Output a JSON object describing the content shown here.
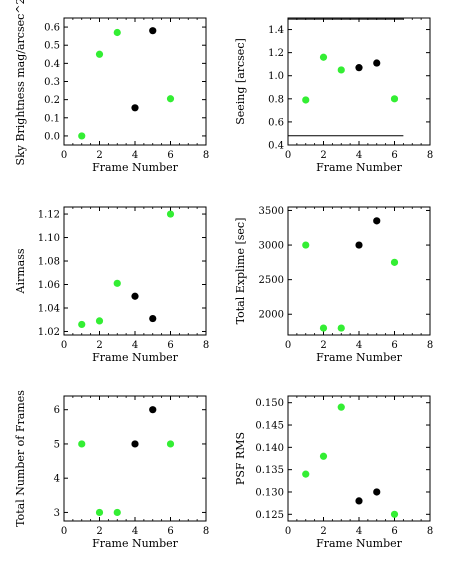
{
  "figure": {
    "background": "#ffffff",
    "green": "#33ee33",
    "black": "#000000"
  },
  "chart_data": [
    {
      "type": "scatter",
      "title": "",
      "xlabel": "Frame Number",
      "ylabel": "Sky Brightness mag/arcsec^2",
      "xlim": [
        0,
        8
      ],
      "ylim": [
        -0.05,
        0.65
      ],
      "xticks": [
        0,
        2,
        4,
        6,
        8
      ],
      "yticks": [
        0.0,
        0.1,
        0.2,
        0.3,
        0.4,
        0.5,
        0.6
      ],
      "ytick_labels": [
        "0.0",
        "0.1",
        "0.2",
        "0.3",
        "0.4",
        "0.5",
        "0.6"
      ],
      "points": [
        {
          "x": 1,
          "y": 0.0,
          "color": "#33ee33"
        },
        {
          "x": 2,
          "y": 0.45,
          "color": "#33ee33"
        },
        {
          "x": 3,
          "y": 0.57,
          "color": "#33ee33"
        },
        {
          "x": 4,
          "y": 0.155,
          "color": "#000000"
        },
        {
          "x": 5,
          "y": 0.58,
          "color": "#000000"
        },
        {
          "x": 6,
          "y": 0.205,
          "color": "#33ee33"
        }
      ],
      "hlines": []
    },
    {
      "type": "scatter",
      "title": "",
      "xlabel": "Frame Number",
      "ylabel": "Seeing [arcsec]",
      "xlim": [
        0,
        8
      ],
      "ylim": [
        0.4,
        1.5
      ],
      "xticks": [
        0,
        2,
        4,
        6,
        8
      ],
      "yticks": [
        0.4,
        0.6,
        0.8,
        1.0,
        1.2,
        1.4
      ],
      "ytick_labels": [
        "0.4",
        "0.6",
        "0.8",
        "1.0",
        "1.2",
        "1.4"
      ],
      "points": [
        {
          "x": 1,
          "y": 0.79,
          "color": "#33ee33"
        },
        {
          "x": 2,
          "y": 1.16,
          "color": "#33ee33"
        },
        {
          "x": 3,
          "y": 1.05,
          "color": "#33ee33"
        },
        {
          "x": 4,
          "y": 1.07,
          "color": "#000000"
        },
        {
          "x": 5,
          "y": 1.11,
          "color": "#000000"
        },
        {
          "x": 6,
          "y": 0.8,
          "color": "#33ee33"
        }
      ],
      "hlines": [
        {
          "y": 0.48,
          "x0": 0,
          "x1": 6.5
        },
        {
          "y": 1.49,
          "x0": 0,
          "x1": 6.5
        }
      ]
    },
    {
      "type": "scatter",
      "title": "",
      "xlabel": "Frame Number",
      "ylabel": "Airmass",
      "xlim": [
        0,
        8
      ],
      "ylim": [
        1.017,
        1.126
      ],
      "xticks": [
        0,
        2,
        4,
        6,
        8
      ],
      "yticks": [
        1.02,
        1.04,
        1.06,
        1.08,
        1.1,
        1.12
      ],
      "ytick_labels": [
        "1.02",
        "1.04",
        "1.06",
        "1.08",
        "1.10",
        "1.12"
      ],
      "points": [
        {
          "x": 1,
          "y": 1.026,
          "color": "#33ee33"
        },
        {
          "x": 2,
          "y": 1.029,
          "color": "#33ee33"
        },
        {
          "x": 3,
          "y": 1.061,
          "color": "#33ee33"
        },
        {
          "x": 4,
          "y": 1.05,
          "color": "#000000"
        },
        {
          "x": 5,
          "y": 1.031,
          "color": "#000000"
        },
        {
          "x": 6,
          "y": 1.12,
          "color": "#33ee33"
        }
      ],
      "hlines": []
    },
    {
      "type": "scatter",
      "title": "",
      "xlabel": "Frame Number",
      "ylabel": "Total Explime [sec]",
      "xlim": [
        0,
        8
      ],
      "ylim": [
        1700,
        3550
      ],
      "xticks": [
        0,
        2,
        4,
        6,
        8
      ],
      "yticks": [
        2000,
        2500,
        3000,
        3500
      ],
      "ytick_labels": [
        "2000",
        "2500",
        "3000",
        "3500"
      ],
      "points": [
        {
          "x": 1,
          "y": 3000,
          "color": "#33ee33"
        },
        {
          "x": 2,
          "y": 1800,
          "color": "#33ee33"
        },
        {
          "x": 3,
          "y": 1800,
          "color": "#33ee33"
        },
        {
          "x": 4,
          "y": 3000,
          "color": "#000000"
        },
        {
          "x": 5,
          "y": 3350,
          "color": "#000000"
        },
        {
          "x": 6,
          "y": 2750,
          "color": "#33ee33"
        }
      ],
      "hlines": []
    },
    {
      "type": "scatter",
      "title": "",
      "xlabel": "Frame Number",
      "ylabel": "Total Number of Frames",
      "xlim": [
        0,
        8
      ],
      "ylim": [
        2.75,
        6.4
      ],
      "xticks": [
        0,
        2,
        4,
        6,
        8
      ],
      "yticks": [
        3,
        4,
        5,
        6
      ],
      "ytick_labels": [
        "3",
        "4",
        "5",
        "6"
      ],
      "points": [
        {
          "x": 1,
          "y": 5,
          "color": "#33ee33"
        },
        {
          "x": 2,
          "y": 3,
          "color": "#33ee33"
        },
        {
          "x": 3,
          "y": 3,
          "color": "#33ee33"
        },
        {
          "x": 4,
          "y": 5,
          "color": "#000000"
        },
        {
          "x": 5,
          "y": 6,
          "color": "#000000"
        },
        {
          "x": 6,
          "y": 5,
          "color": "#33ee33"
        }
      ],
      "hlines": []
    },
    {
      "type": "scatter",
      "title": "",
      "xlabel": "Frame Number",
      "ylabel": "PSF RMS",
      "xlim": [
        0,
        8
      ],
      "ylim": [
        0.1235,
        0.1515
      ],
      "xticks": [
        0,
        2,
        4,
        6,
        8
      ],
      "yticks": [
        0.125,
        0.13,
        0.135,
        0.14,
        0.145,
        0.15
      ],
      "ytick_labels": [
        "0.125",
        "0.130",
        "0.135",
        "0.140",
        "0.145",
        "0.150"
      ],
      "points": [
        {
          "x": 1,
          "y": 0.134,
          "color": "#33ee33"
        },
        {
          "x": 2,
          "y": 0.138,
          "color": "#33ee33"
        },
        {
          "x": 3,
          "y": 0.149,
          "color": "#33ee33"
        },
        {
          "x": 4,
          "y": 0.128,
          "color": "#000000"
        },
        {
          "x": 5,
          "y": 0.13,
          "color": "#000000"
        },
        {
          "x": 6,
          "y": 0.125,
          "color": "#33ee33"
        }
      ],
      "hlines": []
    }
  ]
}
